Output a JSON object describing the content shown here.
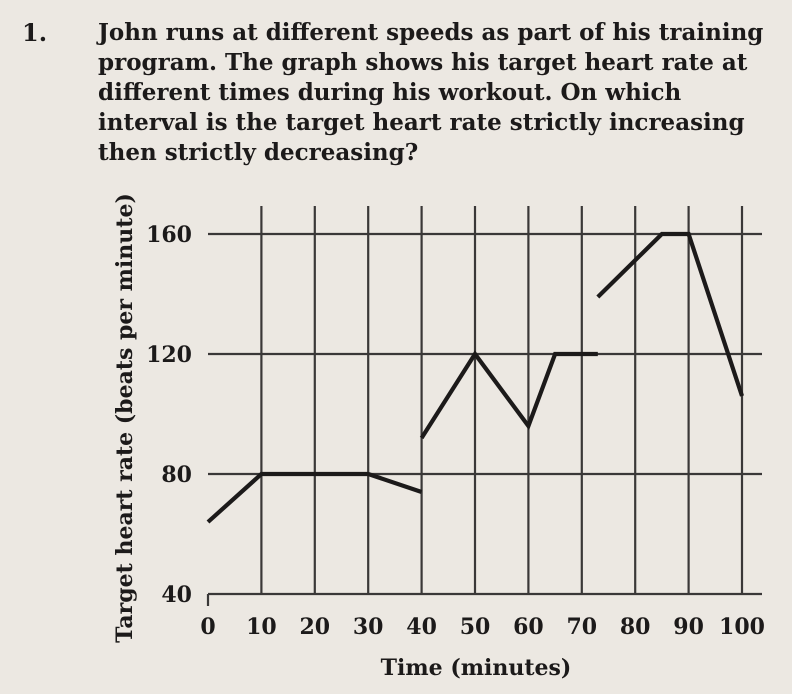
{
  "question": {
    "number": "1.",
    "text": "John runs at different speeds as part of his training program. The graph shows his target heart rate at different times during his workout. On which interval is the target heart rate strictly increasing then strictly decreasing?"
  },
  "chart_data": {
    "type": "line",
    "xlabel": "Time (minutes)",
    "ylabel": "Target heart rate (beats per minute)",
    "xlim": [
      0,
      100
    ],
    "ylim": [
      40,
      160
    ],
    "x_ticks": [
      0,
      10,
      20,
      30,
      40,
      50,
      60,
      70,
      80,
      90,
      100
    ],
    "y_ticks": [
      40,
      80,
      120,
      160
    ],
    "grid": true,
    "segments": [
      {
        "points": [
          [
            0,
            64
          ],
          [
            10,
            80
          ],
          [
            30,
            80
          ],
          [
            40,
            74
          ]
        ]
      },
      {
        "points": [
          [
            40,
            92
          ],
          [
            50,
            120
          ],
          [
            60,
            96
          ],
          [
            65,
            120
          ],
          [
            73,
            120
          ]
        ]
      },
      {
        "points": [
          [
            73,
            139
          ],
          [
            85,
            160
          ],
          [
            90,
            160
          ],
          [
            100,
            106
          ]
        ]
      }
    ],
    "colors": {
      "line": "#1c1a1a",
      "grid": "#3a3838"
    }
  }
}
